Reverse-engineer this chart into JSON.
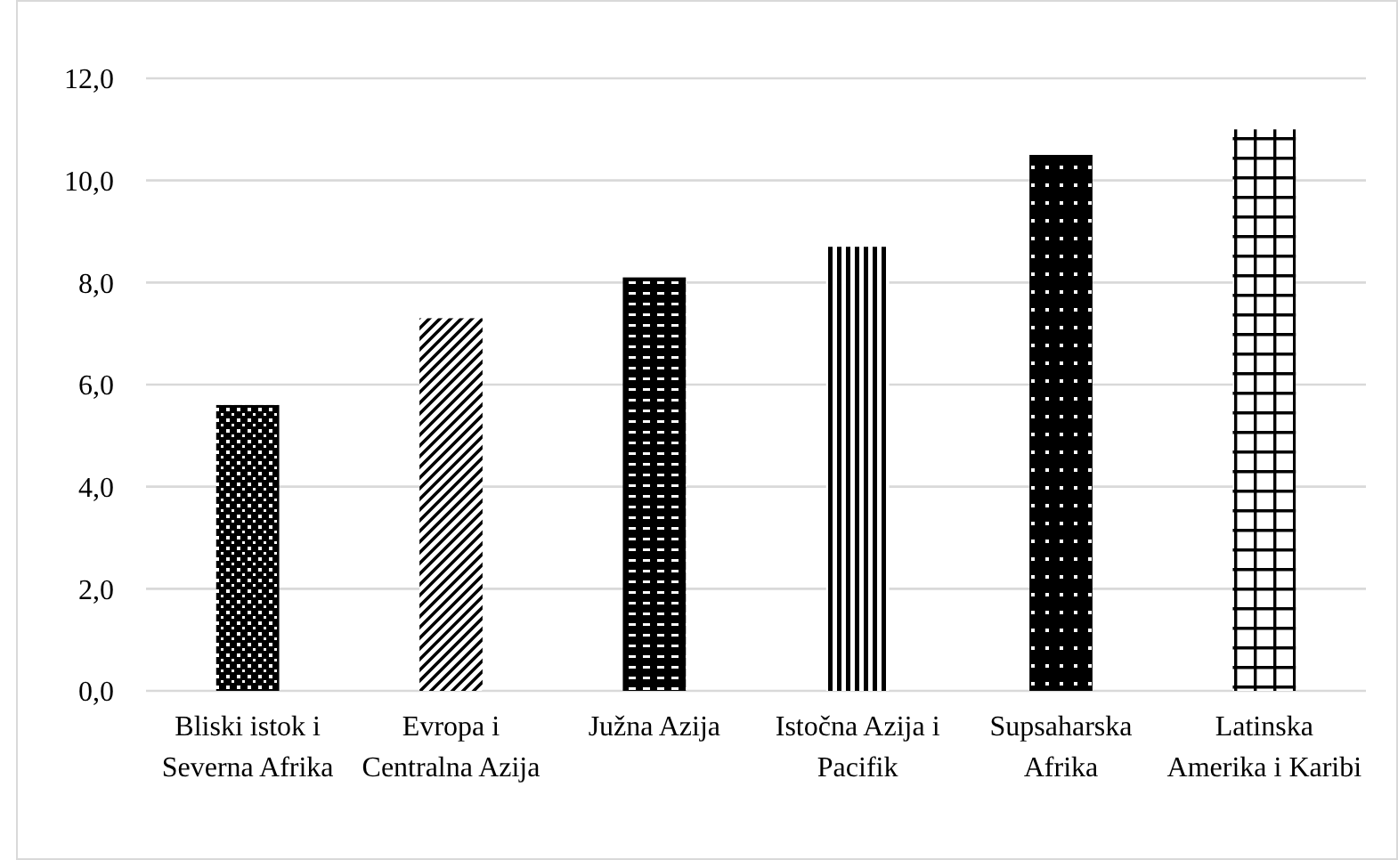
{
  "chart_data": {
    "type": "bar",
    "categories": [
      "Bliski istok i Severna Afrika",
      "Evropa i Centralna Azija",
      "Južna Azija",
      "Istočna Azija i Pacifik",
      "Supsaharska Afrika",
      "Latinska Amerika i Karibi"
    ],
    "values": [
      5.6,
      7.3,
      8.1,
      8.7,
      10.5,
      11.0
    ],
    "colors": [
      "#000000",
      "#000000",
      "#000000",
      "#000000",
      "#000000",
      "#000000"
    ],
    "ylim": [
      0,
      12
    ],
    "yticks": [
      {
        "value": 0,
        "label": "0,0"
      },
      {
        "value": 2,
        "label": "2,0"
      },
      {
        "value": 4,
        "label": "4,0"
      },
      {
        "value": 6,
        "label": "6,0"
      },
      {
        "value": 8,
        "label": "8,0"
      },
      {
        "value": 10,
        "label": "10,0"
      },
      {
        "value": 12,
        "label": "12,0"
      }
    ],
    "grid": "y"
  }
}
